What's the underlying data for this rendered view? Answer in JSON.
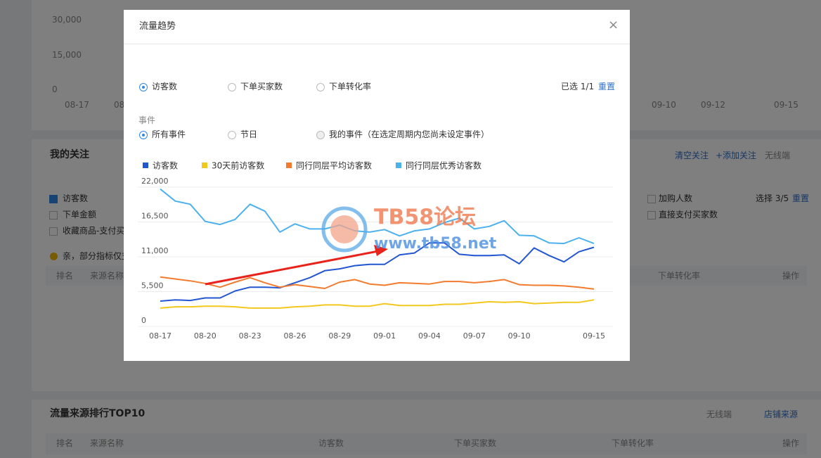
{
  "background": {
    "chart_yticks": [
      "30,000",
      "15,000",
      "0"
    ],
    "chart_xlabels": [
      "08-17",
      "08",
      "09-10",
      "09-12",
      "09-15"
    ]
  },
  "follow": {
    "title": "我的关注",
    "actions": [
      "清空关注",
      "+添加关注",
      "无线端"
    ],
    "metrics_left": [
      "访客数",
      "下单金额",
      "收藏商品-支付买"
    ],
    "metrics_right": [
      "加购人数",
      "直接支付买家数"
    ],
    "selected": "选择 3/5",
    "reset": "重置",
    "notice": "亲，部分指标仅支",
    "columns": [
      "排名",
      "来源名称",
      "下单转化率",
      "操作"
    ]
  },
  "top10": {
    "title": "流量来源排行TOP10",
    "device": "无线端",
    "source": "店铺来源",
    "columns": [
      "排名",
      "来源名称",
      "访客数",
      "下单买家数",
      "下单转化率",
      "操作"
    ]
  },
  "modal": {
    "title": "流量趋势",
    "close": "×",
    "metrics": [
      "访客数",
      "下单买家数",
      "下单转化率"
    ],
    "selected_count": "已选 1/1",
    "reset": "重置",
    "event_label": "事件",
    "events": [
      "所有事件",
      "节日",
      "我的事件（在选定周期内您尚未设定事件）"
    ],
    "watermark": [
      "TB58论坛",
      "www.tb58.net"
    ]
  },
  "chart_data": {
    "type": "line",
    "categories": [
      "08-17",
      null,
      null,
      "08-20",
      null,
      null,
      "08-23",
      null,
      null,
      "08-26",
      null,
      null,
      "08-29",
      null,
      null,
      "09-01",
      null,
      null,
      "09-04",
      null,
      null,
      "09-07",
      null,
      null,
      "09-10",
      null,
      null,
      null,
      null,
      "09-15"
    ],
    "series": [
      {
        "name": "访客数",
        "color": "#2356d2",
        "values": [
          4000,
          4200,
          4100,
          4500,
          4500,
          5600,
          6200,
          6200,
          6100,
          6900,
          7700,
          8800,
          9100,
          9600,
          9800,
          9800,
          11300,
          11600,
          13200,
          13200,
          11400,
          11200,
          11200,
          11300,
          9900,
          12400,
          11200,
          10200,
          11800,
          12500
        ]
      },
      {
        "name": "30天前访客数",
        "color": "#f2c81e",
        "values": [
          2900,
          3100,
          3100,
          3200,
          3200,
          3100,
          2900,
          2900,
          2900,
          3100,
          3200,
          3400,
          3400,
          3200,
          3200,
          3600,
          3300,
          3300,
          3300,
          3500,
          3500,
          3700,
          3900,
          3800,
          3900,
          3600,
          3700,
          3800,
          3800,
          4200
        ]
      },
      {
        "name": "同行同层平均访客数",
        "color": "#f27b2e",
        "values": [
          7800,
          7500,
          7200,
          6800,
          6200,
          7000,
          7700,
          6900,
          6200,
          6600,
          6300,
          6000,
          7000,
          7400,
          6700,
          6500,
          6900,
          6800,
          6700,
          7100,
          7100,
          6900,
          7100,
          7400,
          6600,
          6500,
          6500,
          6400,
          6200,
          5900
        ]
      },
      {
        "name": "同行同层优秀访客数",
        "color": "#4db1ee",
        "values": [
          21700,
          19800,
          19300,
          16600,
          16100,
          16900,
          19300,
          18200,
          14900,
          16200,
          15400,
          15400,
          16000,
          15100,
          14900,
          15300,
          14300,
          15100,
          15400,
          16400,
          17100,
          15400,
          15800,
          16700,
          14400,
          14300,
          13200,
          13100,
          14000,
          13100
        ]
      }
    ],
    "ylim": [
      0,
      22000
    ],
    "yticks": [
      0,
      {
        "value": 5500,
        "label": "5,500"
      },
      {
        "value": 11000,
        "label": "11,000"
      },
      {
        "value": 16500,
        "label": "16,500"
      },
      {
        "value": 22000,
        "label": "22,000"
      }
    ],
    "grid": true
  }
}
